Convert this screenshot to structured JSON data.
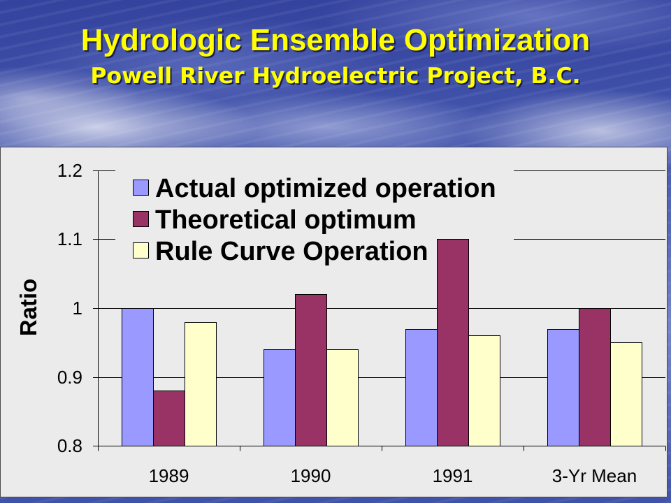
{
  "slide": {
    "title": "Hydrologic Ensemble Optimization",
    "subtitle": "Powell River Hydroelectric Project, B.C.",
    "title_color": "#FFFF00"
  },
  "chart_data": {
    "type": "bar",
    "ylabel": "Ratio",
    "categories": [
      "1989",
      "1990",
      "1991",
      "3-Yr Mean"
    ],
    "series": [
      {
        "name": "Actual optimized operation",
        "color": "#9999FF",
        "values": [
          1.0,
          0.94,
          0.97,
          0.97
        ]
      },
      {
        "name": "Theoretical optimum",
        "color": "#993366",
        "values": [
          0.88,
          1.02,
          1.1,
          1.0
        ]
      },
      {
        "name": "Rule Curve Operation",
        "color": "#FFFFCC",
        "values": [
          0.98,
          0.94,
          0.96,
          0.95
        ]
      }
    ],
    "ylim": [
      0.8,
      1.2
    ],
    "yticks": [
      0.8,
      0.9,
      1,
      1.1,
      1.2
    ],
    "grid": true,
    "legend_position": "top-left",
    "plot_background": "#EBEBEB"
  }
}
